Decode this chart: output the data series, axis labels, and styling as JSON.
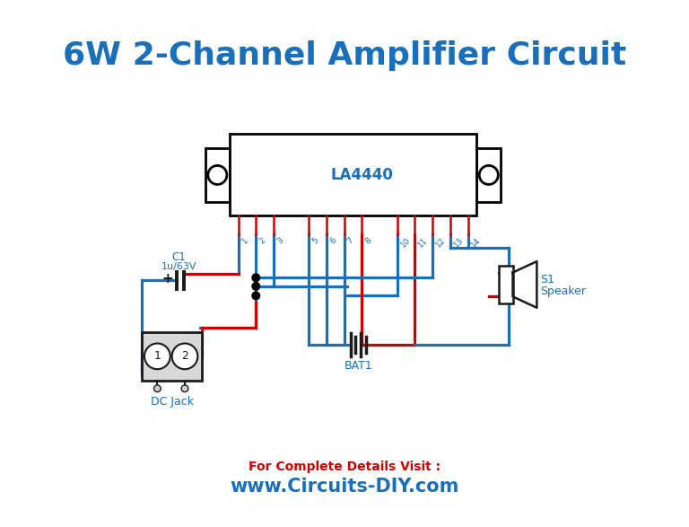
{
  "title": "6W 2-Channel Amplifier Circuit",
  "title_color": "#1a6fba",
  "title_fontsize": 26,
  "subtitle1": "For Complete Details Visit :",
  "subtitle2": "www.Circuits-DIY.com",
  "subtitle_color": "#cc0000",
  "subtitle2_color": "#1a6fba",
  "bg_color": "#ffffff",
  "ic_label": "LA4440",
  "ic_color": "#1a6fba",
  "wire_color": "#1a6fba",
  "pin_color": "#cc0000",
  "comp_color": "#1a1a1a",
  "pin_labels": [
    "1",
    "2",
    "3",
    "5",
    "6",
    "7",
    "8",
    "10",
    "11",
    "12",
    "13",
    "14"
  ],
  "c1_label1": "C1",
  "c1_label2": "1u/63V",
  "bat_label": "BAT1",
  "dcjack_label": "DC Jack",
  "speaker_label1": "S1",
  "speaker_label2": "Speaker",
  "plus_label": "+"
}
